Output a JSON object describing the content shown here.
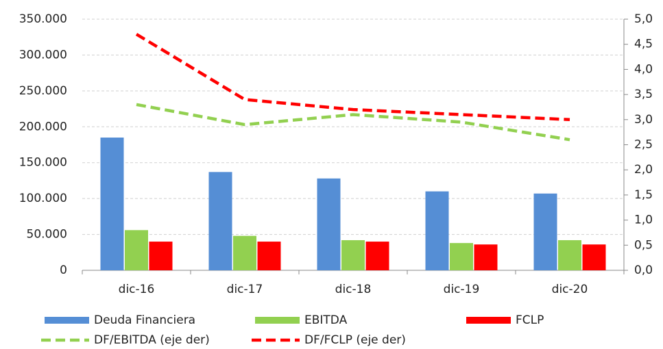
{
  "chart_data": {
    "type": "bar",
    "categories": [
      "dic-16",
      "dic-17",
      "dic-18",
      "dic-19",
      "dic-20"
    ],
    "series": [
      {
        "name": "Deuda Financiera",
        "color": "#558ed5",
        "values": [
          185000,
          137000,
          128000,
          110000,
          107000
        ]
      },
      {
        "name": "EBITDA",
        "color": "#92d050",
        "values": [
          56000,
          48000,
          42000,
          38000,
          42000
        ]
      },
      {
        "name": "FCLP",
        "color": "#ff0000",
        "values": [
          40000,
          40000,
          40000,
          36000,
          36000
        ]
      },
      {
        "name": "DF/EBITDA (eje der)",
        "color": "#92d050",
        "type": "line",
        "axis": "y2",
        "dashed": true,
        "values": [
          3.3,
          2.9,
          3.1,
          2.95,
          2.6
        ]
      },
      {
        "name": "DF/FCLP (eje der)",
        "color": "#ff0000",
        "type": "line",
        "axis": "y2",
        "dashed": true,
        "values": [
          4.7,
          3.4,
          3.2,
          3.1,
          3.0
        ]
      }
    ],
    "ylim": [
      0,
      350000
    ],
    "yticks": [
      0,
      {
        "value": 50000,
        "label": "50.000"
      },
      {
        "value": 100000,
        "label": "100.000"
      },
      {
        "value": 150000,
        "label": "150.000"
      },
      {
        "value": 200000,
        "label": "200.000"
      },
      {
        "value": 250000,
        "label": "250.000"
      },
      {
        "value": 300000,
        "label": "300.000"
      },
      {
        "value": 350000,
        "label": "350.000"
      }
    ],
    "y2lim": [
      0,
      5
    ],
    "y2ticks": [
      {
        "value": 0,
        "label": "0,0"
      },
      {
        "value": 0.5,
        "label": "0,5"
      },
      {
        "value": 1,
        "label": "1,0"
      },
      {
        "value": 1.5,
        "label": "1,5"
      },
      {
        "value": 2,
        "label": "2,0"
      },
      {
        "value": 2.5,
        "label": "2,5"
      },
      {
        "value": 3,
        "label": "3,0"
      },
      {
        "value": 3.5,
        "label": "3,5"
      },
      {
        "value": 4,
        "label": "4,0"
      },
      {
        "value": 4.5,
        "label": "4,5"
      },
      {
        "value": 5,
        "label": "5,0"
      }
    ],
    "grid": true,
    "legend": "bottom"
  }
}
